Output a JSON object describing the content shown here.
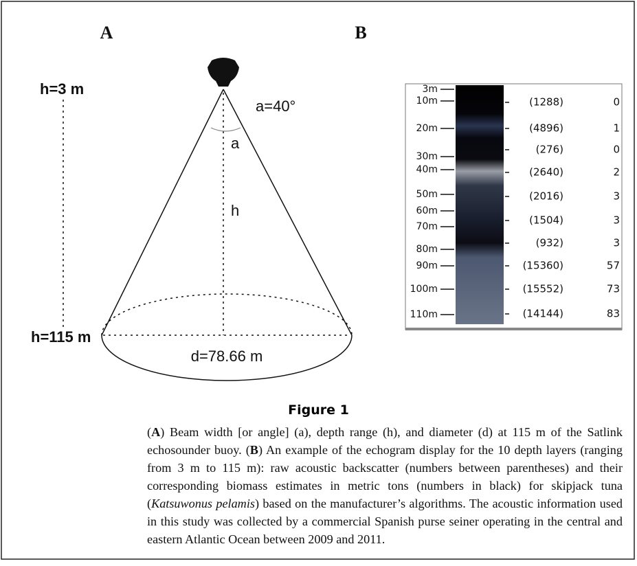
{
  "panel_a": {
    "label": "A",
    "angle_label": "a=40°",
    "angle_symbol": "a",
    "height_symbol": "h",
    "diameter_label": "d=78.66 m",
    "top_depth": "h=3 m",
    "bottom_depth": "h=115 m"
  },
  "panel_b": {
    "label": "B",
    "depth_labels": [
      "3m",
      "10m",
      "20m",
      "30m",
      "40m",
      "50m",
      "60m",
      "70m",
      "80m",
      "90m",
      "100m",
      "110m"
    ],
    "raw_backscatter": [
      "(1288)",
      "(4896)",
      "(276)",
      "(2640)",
      "(2016)",
      "(1504)",
      "(932)",
      "(15360)",
      "(15552)",
      "(14144)"
    ],
    "biomass": [
      0,
      1,
      0,
      2,
      3,
      3,
      3,
      57,
      73,
      83
    ]
  },
  "figure": {
    "title": "Figure 1",
    "caption": [
      "(",
      "A",
      ") Beam width [or angle] (a), depth range (h), and diameter (d) at 115 m of the Satlink echosounder buoy. (",
      "B",
      ") An example of the echogram display for the 10 depth layers (ranging from 3 m to 115 m): raw acoustic backscatter (numbers between parentheses) and their corresponding biomass estimates in metric tons (numbers in black) for skipjack tuna (",
      "Katsuwonus pelamis",
      ") based on the manufacturer’s algorithms. The acoustic information used in this study was collected by a commercial Spanish purse seiner operating in the central and eastern Atlantic Ocean between 2009 and 2011."
    ]
  }
}
